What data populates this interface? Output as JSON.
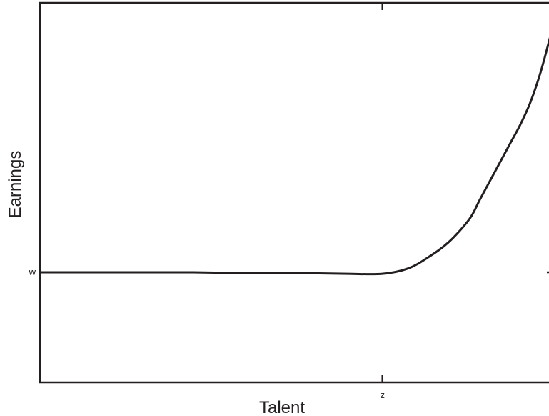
{
  "chart_data": {
    "type": "line",
    "title": "",
    "xlabel": "Talent",
    "ylabel": "Earnings",
    "x_ticks": [
      {
        "label": "z",
        "value": 0.67
      }
    ],
    "y_ticks": [
      {
        "label": "w",
        "value": 0.29
      }
    ],
    "xlim": [
      0,
      1
    ],
    "ylim": [
      0,
      1
    ],
    "grid": false,
    "legend": "none",
    "series": [
      {
        "color": "#231f20",
        "x": [
          0,
          0.1,
          0.2,
          0.3,
          0.4,
          0.5,
          0.6,
          0.67,
          0.72,
          0.76,
          0.8,
          0.84,
          0.86,
          0.88,
          0.9,
          0.92,
          0.94,
          0.96,
          0.98,
          1.0
        ],
        "y": [
          0.29,
          0.29,
          0.29,
          0.29,
          0.288,
          0.288,
          0.286,
          0.286,
          0.3,
          0.33,
          0.37,
          0.43,
          0.48,
          0.53,
          0.58,
          0.63,
          0.68,
          0.74,
          0.82,
          0.92
        ]
      }
    ]
  }
}
